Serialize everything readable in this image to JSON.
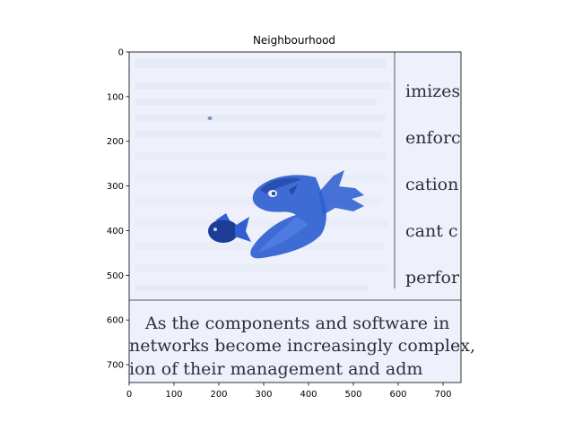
{
  "figure": {
    "title": "Neighbourhood"
  },
  "axes": {
    "x_ticks": [
      0,
      100,
      200,
      300,
      400,
      500,
      600,
      700
    ],
    "y_ticks": [
      0,
      100,
      200,
      300,
      400,
      500,
      600,
      700
    ],
    "xlim": [
      0,
      740
    ],
    "ylim": [
      740,
      0
    ]
  },
  "image_text": {
    "right_column": [
      "imizes",
      "enforc",
      "cation",
      "cant c",
      "perfor"
    ],
    "bottom_lines": [
      "As the components and software in",
      "networks become increasingly complex,",
      "ion  of  their  management  and  adm"
    ]
  },
  "colors": {
    "paper": "#eef1fb",
    "fish_blue": "#2f5fd0",
    "fish_dark": "#1d3c96",
    "rule_line": "#555a66"
  }
}
